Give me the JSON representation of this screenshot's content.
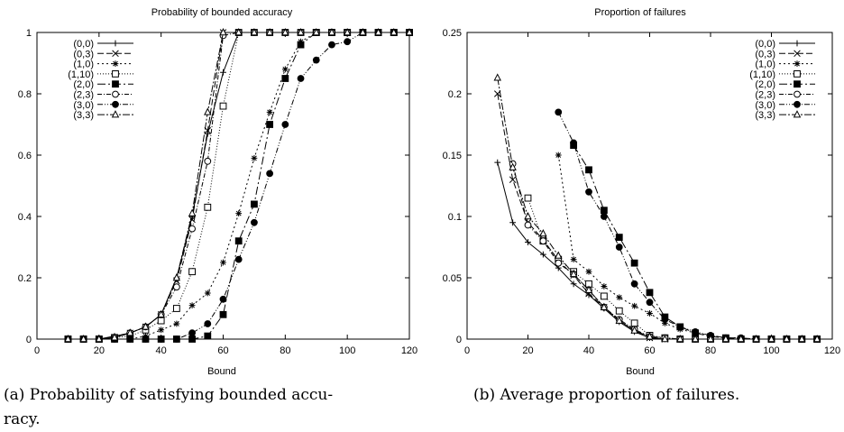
{
  "charts": [
    {
      "caption": "(a) Probability of satisfying bounded accuracy.",
      "caption_lines": [
        "(a) Probability of satisfying bounded accu-",
        "racy."
      ]
    },
    {
      "caption": "(b) Average proportion of failures.",
      "caption_lines": [
        "(b) Average proportion of failures."
      ]
    }
  ],
  "chart_data": [
    {
      "type": "line",
      "title": "Probability of bounded accuracy",
      "xlabel": "Bound",
      "ylabel": "",
      "xlim": [
        0,
        120
      ],
      "ylim": [
        0,
        1
      ],
      "xticks": [
        0,
        20,
        40,
        60,
        80,
        100,
        120
      ],
      "yticks": [
        0,
        0.2,
        0.4,
        0.6,
        0.8,
        1
      ],
      "ytick_labels": [
        "0",
        "0.2",
        "0.4",
        "0.6",
        "0.8",
        "1"
      ],
      "grid": false,
      "legend_position": "top-left",
      "series": [
        {
          "name": "(0,0)",
          "marker": "plus",
          "dash": "",
          "x": [
            10,
            15,
            20,
            25,
            30,
            35,
            40,
            45,
            50,
            55,
            60,
            65,
            70,
            75,
            80,
            85,
            90,
            95,
            100,
            105,
            110,
            115,
            120
          ],
          "y": [
            0,
            0,
            0,
            0.01,
            0.02,
            0.04,
            0.08,
            0.2,
            0.4,
            0.67,
            0.87,
            1,
            1,
            1,
            1,
            1,
            1,
            1,
            1,
            1,
            1,
            1,
            1
          ]
        },
        {
          "name": "(0,3)",
          "marker": "x",
          "dash": "7,3",
          "x": [
            10,
            15,
            20,
            25,
            30,
            35,
            40,
            45,
            50,
            55,
            60,
            65,
            70,
            75,
            80,
            85,
            90,
            95,
            100,
            105,
            110,
            115,
            120
          ],
          "y": [
            0,
            0,
            0,
            0.005,
            0.02,
            0.04,
            0.08,
            0.19,
            0.39,
            0.68,
            1,
            1,
            1,
            1,
            1,
            1,
            1,
            1,
            1,
            1,
            1,
            1,
            1
          ]
        },
        {
          "name": "(1,0)",
          "marker": "star",
          "dash": "2,3",
          "x": [
            10,
            15,
            20,
            25,
            30,
            35,
            40,
            45,
            50,
            55,
            60,
            65,
            70,
            75,
            80,
            85,
            90,
            95,
            100,
            105,
            110,
            115,
            120
          ],
          "y": [
            0,
            0,
            0,
            0,
            0,
            0.01,
            0.03,
            0.05,
            0.11,
            0.15,
            0.25,
            0.41,
            0.59,
            0.74,
            0.88,
            0.97,
            1,
            1,
            1,
            1,
            1,
            1,
            1
          ]
        },
        {
          "name": "(1,10)",
          "marker": "square-open",
          "dash": "1,2",
          "x": [
            10,
            15,
            20,
            25,
            30,
            35,
            40,
            45,
            50,
            55,
            60,
            65,
            70,
            75,
            80,
            85,
            90,
            95,
            100,
            105,
            110,
            115,
            120
          ],
          "y": [
            0,
            0,
            0,
            0.005,
            0.01,
            0.03,
            0.06,
            0.1,
            0.22,
            0.43,
            0.76,
            1,
            1,
            1,
            1,
            1,
            1,
            1,
            1,
            1,
            1,
            1,
            1
          ]
        },
        {
          "name": "(2,0)",
          "marker": "square-filled",
          "dash": "9,3,2,3",
          "x": [
            10,
            15,
            20,
            25,
            30,
            35,
            40,
            45,
            50,
            55,
            60,
            65,
            70,
            75,
            80,
            85,
            90,
            95,
            100,
            105,
            110,
            115,
            120
          ],
          "y": [
            0,
            0,
            0,
            0,
            0,
            0,
            0,
            0,
            0,
            0.01,
            0.08,
            0.32,
            0.44,
            0.7,
            0.85,
            0.96,
            1,
            1,
            1,
            1,
            1,
            1,
            1
          ]
        },
        {
          "name": "(2,3)",
          "marker": "circle-open",
          "dash": "5,2,1,2",
          "x": [
            10,
            15,
            20,
            25,
            30,
            35,
            40,
            45,
            50,
            55,
            60,
            65,
            70,
            75,
            80,
            85,
            90,
            95,
            100,
            105,
            110,
            115,
            120
          ],
          "y": [
            0,
            0,
            0,
            0.005,
            0.02,
            0.04,
            0.08,
            0.17,
            0.36,
            0.58,
            0.99,
            1,
            1,
            1,
            1,
            1,
            1,
            1,
            1,
            1,
            1,
            1,
            1
          ]
        },
        {
          "name": "(3,0)",
          "marker": "circle-filled",
          "dash": "6,2,1,2,1,2",
          "x": [
            10,
            15,
            20,
            25,
            30,
            35,
            40,
            45,
            50,
            55,
            60,
            65,
            70,
            75,
            80,
            85,
            90,
            95,
            100,
            105,
            110,
            115,
            120
          ],
          "y": [
            0,
            0,
            0,
            0,
            0,
            0,
            0,
            0,
            0.02,
            0.05,
            0.13,
            0.26,
            0.38,
            0.54,
            0.7,
            0.85,
            0.91,
            0.96,
            0.97,
            1,
            1,
            1,
            1
          ]
        },
        {
          "name": "(3,3)",
          "marker": "triangle-open",
          "dash": "8,2,2,2",
          "x": [
            10,
            15,
            20,
            25,
            30,
            35,
            40,
            45,
            50,
            55,
            60,
            65,
            70,
            75,
            80,
            85,
            90,
            95,
            100,
            105,
            110,
            115,
            120
          ],
          "y": [
            0,
            0,
            0,
            0.005,
            0.02,
            0.04,
            0.08,
            0.2,
            0.41,
            0.74,
            1,
            1,
            1,
            1,
            1,
            1,
            1,
            1,
            1,
            1,
            1,
            1,
            1
          ]
        }
      ]
    },
    {
      "type": "line",
      "title": "Proportion of failures",
      "xlabel": "Bound",
      "ylabel": "",
      "xlim": [
        0,
        120
      ],
      "ylim": [
        0,
        0.25
      ],
      "xticks": [
        0,
        20,
        40,
        60,
        80,
        100,
        120
      ],
      "yticks": [
        0,
        0.05,
        0.1,
        0.15,
        0.2,
        0.25
      ],
      "ytick_labels": [
        "0",
        "0.05",
        "0.1",
        "0.15",
        "0.2",
        "0.25"
      ],
      "grid": false,
      "legend_position": "top-right",
      "series": [
        {
          "name": "(0,0)",
          "marker": "plus",
          "dash": "",
          "x": [
            10,
            15,
            20,
            25,
            30,
            35,
            40,
            45,
            50,
            55,
            60,
            65,
            70,
            75,
            80,
            85,
            90,
            95,
            100,
            105,
            110,
            115
          ],
          "y": [
            0.144,
            0.095,
            0.079,
            0.069,
            0.058,
            0.045,
            0.036,
            0.025,
            0.014,
            0.006,
            0.001,
            0,
            0,
            0,
            0,
            0,
            0,
            0,
            0,
            0,
            0,
            0
          ]
        },
        {
          "name": "(0,3)",
          "marker": "x",
          "dash": "7,3",
          "x": [
            10,
            15,
            20,
            25,
            30,
            35,
            40,
            45,
            50,
            55,
            60,
            65,
            70,
            75,
            80,
            85,
            90,
            95,
            100,
            105,
            110,
            115
          ],
          "y": [
            0.2,
            0.13,
            0.095,
            0.081,
            0.064,
            0.052,
            0.037,
            0.026,
            0.015,
            0.007,
            0.001,
            0,
            0,
            0,
            0,
            0,
            0,
            0,
            0,
            0,
            0,
            0
          ]
        },
        {
          "name": "(1,0)",
          "marker": "star",
          "dash": "2,3",
          "x": [
            30,
            35,
            40,
            45,
            50,
            55,
            60,
            65,
            70,
            75,
            80,
            85,
            90,
            95,
            100,
            105,
            110,
            115
          ],
          "y": [
            0.15,
            0.065,
            0.055,
            0.043,
            0.034,
            0.027,
            0.021,
            0.013,
            0.008,
            0.005,
            0.003,
            0.001,
            0.001,
            0,
            0,
            0,
            0,
            0
          ]
        },
        {
          "name": "(1,10)",
          "marker": "square-open",
          "dash": "1,2",
          "x": [
            20,
            25,
            30,
            35,
            40,
            45,
            50,
            55,
            60,
            65,
            70,
            75,
            80,
            85,
            90,
            95,
            100,
            105,
            110,
            115
          ],
          "y": [
            0.115,
            0.08,
            0.065,
            0.055,
            0.045,
            0.035,
            0.023,
            0.013,
            0.003,
            0.001,
            0,
            0,
            0,
            0,
            0,
            0,
            0,
            0,
            0,
            0
          ]
        },
        {
          "name": "(2,0)",
          "marker": "square-filled",
          "dash": "9,3,2,3",
          "x": [
            35,
            40,
            45,
            50,
            55,
            60,
            65,
            70,
            75,
            80,
            85,
            90,
            95,
            100,
            105,
            110,
            115
          ],
          "y": [
            0.158,
            0.138,
            0.105,
            0.083,
            0.062,
            0.038,
            0.018,
            0.01,
            0.005,
            0.002,
            0.001,
            0,
            0,
            0,
            0,
            0,
            0
          ]
        },
        {
          "name": "(2,3)",
          "marker": "circle-open",
          "dash": "5,2,1,2",
          "x": [
            15,
            20,
            25,
            30,
            35,
            40,
            45,
            50,
            55,
            60,
            65,
            70,
            75,
            80,
            85,
            90,
            95,
            100,
            105,
            110,
            115
          ],
          "y": [
            0.143,
            0.093,
            0.08,
            0.062,
            0.053,
            0.04,
            0.026,
            0.016,
            0.008,
            0.002,
            0.001,
            0,
            0,
            0,
            0,
            0,
            0,
            0,
            0,
            0,
            0
          ]
        },
        {
          "name": "(3,0)",
          "marker": "circle-filled",
          "dash": "6,2,1,2,1,2",
          "x": [
            30,
            35,
            40,
            45,
            50,
            55,
            60,
            65,
            70,
            75,
            80,
            85,
            90,
            95,
            100,
            105,
            110,
            115
          ],
          "y": [
            0.185,
            0.16,
            0.12,
            0.1,
            0.075,
            0.045,
            0.03,
            0.016,
            0.01,
            0.006,
            0.003,
            0.001,
            0.001,
            0,
            0,
            0,
            0,
            0
          ]
        },
        {
          "name": "(3,3)",
          "marker": "triangle-open",
          "dash": "8,2,2,2",
          "x": [
            10,
            15,
            20,
            25,
            30,
            35,
            40,
            45,
            50,
            55,
            60,
            65,
            70,
            75,
            80,
            85,
            90,
            95,
            100,
            105,
            110,
            115
          ],
          "y": [
            0.213,
            0.14,
            0.1,
            0.086,
            0.068,
            0.053,
            0.04,
            0.026,
            0.015,
            0.007,
            0.002,
            0,
            0,
            0,
            0,
            0,
            0,
            0,
            0,
            0,
            0,
            0
          ]
        }
      ]
    }
  ]
}
